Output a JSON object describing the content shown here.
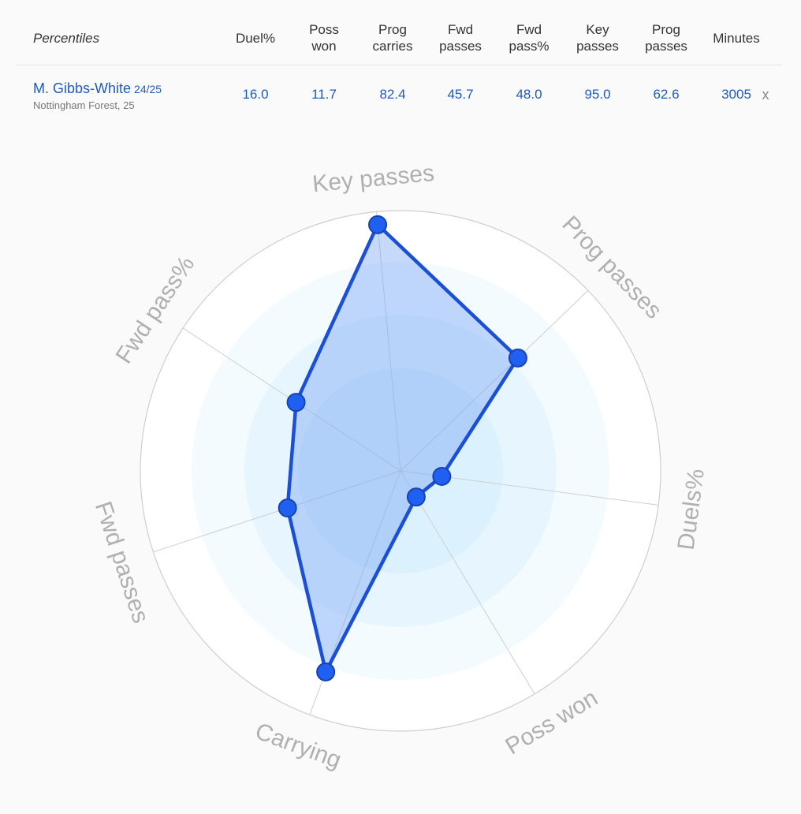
{
  "table": {
    "header_title": "Percentiles",
    "columns": [
      "Duel%",
      "Poss\nwon",
      "Prog\ncarries",
      "Fwd\npasses",
      "Fwd\npass%",
      "Key\npasses",
      "Prog\npasses",
      "Minutes"
    ],
    "player": {
      "name": "M. Gibbs-White",
      "season": "24/25",
      "team": "Nottingham Forest, 25",
      "values": [
        "16.0",
        "11.7",
        "82.4",
        "45.7",
        "48.0",
        "95.0",
        "62.6",
        "3005"
      ]
    },
    "close_label": "x"
  },
  "chart_data": {
    "type": "radar",
    "axes": [
      "Key passes",
      "Prog passes",
      "Duels%",
      "Poss won",
      "Carrying",
      "Fwd passes",
      "Fwd pass%"
    ],
    "series": [
      {
        "values": [
          95.0,
          62.6,
          16.0,
          11.7,
          82.4,
          45.7,
          48.0
        ]
      }
    ],
    "range": [
      0,
      100
    ],
    "colors": {
      "line": "#1a4fd6",
      "fill": "#6a9cf5",
      "rings": "#ddf1fd",
      "grid": "#cfcfcf"
    }
  }
}
